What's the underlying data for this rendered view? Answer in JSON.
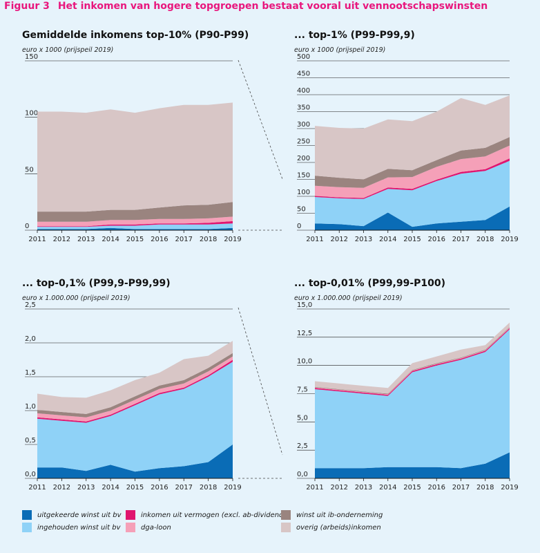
{
  "figure": {
    "label": "Figuur 3",
    "title": "Het inkomen van hogere topgroepen bestaat vooral uit vennootschapswinsten"
  },
  "legend": [
    {
      "key": "uitgekeerd",
      "label": "uitgekeerde winst uit bv",
      "color": "#0a6cb6"
    },
    {
      "key": "ingehouden",
      "label": "ingehouden winst uit bv",
      "color": "#8fd2f7"
    },
    {
      "key": "vermogen",
      "label": "inkomen uit vermogen (excl. ab-dividend)",
      "color": "#e0156f"
    },
    {
      "key": "dga",
      "label": "dga-loon",
      "color": "#f5a0b8"
    },
    {
      "key": "ib",
      "label": "winst uit ib-onderneming",
      "color": "#9a847f"
    },
    {
      "key": "overig",
      "label": "overig (arbeids)inkomen",
      "color": "#d8c6c6"
    }
  ],
  "chart_data": [
    {
      "type": "area",
      "stacked": true,
      "title": "Gemiddelde inkomens top-10% (P90-P99)",
      "ylabel": "euro x 1000 (prijspeil 2019)",
      "x": [
        "2011",
        "2012",
        "2013",
        "2014",
        "2015",
        "2016",
        "2017",
        "2018",
        "2019"
      ],
      "ylim": [
        0,
        150
      ],
      "yticks": [
        "0",
        "50",
        "100",
        "150"
      ],
      "series": [
        {
          "name": "uitgekeerde winst uit bv",
          "values": [
            1,
            1,
            1,
            2,
            1,
            1,
            1,
            1,
            2
          ]
        },
        {
          "name": "ingehouden winst uit bv",
          "values": [
            2,
            2,
            2,
            2,
            3,
            4,
            4,
            4,
            4
          ]
        },
        {
          "name": "inkomen uit vermogen (excl. ab-dividend)",
          "values": [
            0.5,
            0.5,
            0.5,
            1,
            1,
            1,
            1,
            1.5,
            2
          ]
        },
        {
          "name": "dga-loon",
          "values": [
            4,
            4,
            4,
            4,
            4,
            4,
            4,
            4,
            4
          ]
        },
        {
          "name": "winst uit ib-onderneming",
          "values": [
            9,
            9,
            9,
            9,
            9,
            10,
            12,
            12,
            13
          ]
        },
        {
          "name": "overig (arbeids)inkomen",
          "values": [
            88.5,
            88.5,
            87.5,
            89,
            86,
            88,
            89,
            88.5,
            88
          ]
        }
      ]
    },
    {
      "type": "area",
      "stacked": true,
      "title": "... top-1% (P99-P99,9)",
      "ylabel": "euro x 1000 (prijspeil 2019)",
      "x": [
        "2011",
        "2012",
        "2013",
        "2014",
        "2015",
        "2016",
        "2017",
        "2018",
        "2019"
      ],
      "ylim": [
        0,
        500
      ],
      "yticks": [
        "0",
        "50",
        "100",
        "150",
        "200",
        "250",
        "300",
        "350",
        "400",
        "450",
        "500"
      ],
      "series": [
        {
          "name": "uitgekeerde winst uit bv",
          "values": [
            20,
            18,
            12,
            52,
            10,
            20,
            25,
            30,
            70
          ]
        },
        {
          "name": "ingehouden winst uit bv",
          "values": [
            78,
            76,
            80,
            70,
            108,
            125,
            142,
            145,
            135
          ]
        },
        {
          "name": "inkomen uit vermogen (excl. ab-dividend)",
          "values": [
            3,
            3,
            3,
            4,
            4,
            4,
            5,
            5,
            7
          ]
        },
        {
          "name": "dga-loon",
          "values": [
            30,
            30,
            30,
            30,
            35,
            38,
            38,
            38,
            38
          ]
        },
        {
          "name": "winst uit ib-onderneming",
          "values": [
            30,
            28,
            25,
            25,
            20,
            20,
            25,
            25,
            25
          ]
        },
        {
          "name": "overig (arbeids)inkomen",
          "values": [
            147,
            147,
            150,
            146,
            145,
            143,
            155,
            127,
            123
          ]
        }
      ]
    },
    {
      "type": "area",
      "stacked": true,
      "title": "... top-0,1% (P99,9-P99,99)",
      "ylabel": "euro x 1.000.000 (prijspeil 2019)",
      "x": [
        "2011",
        "2012",
        "2013",
        "2014",
        "2015",
        "2016",
        "2017",
        "2018",
        "2019"
      ],
      "ylim": [
        0,
        2.5
      ],
      "yticks": [
        "0,0",
        "0,5",
        "1,0",
        "1,5",
        "2,0",
        "2,5"
      ],
      "series": [
        {
          "name": "uitgekeerde winst uit bv",
          "values": [
            0.16,
            0.16,
            0.11,
            0.2,
            0.1,
            0.15,
            0.18,
            0.24,
            0.5
          ]
        },
        {
          "name": "ingehouden winst uit bv",
          "values": [
            0.72,
            0.69,
            0.71,
            0.72,
            0.98,
            1.09,
            1.14,
            1.26,
            1.22
          ]
        },
        {
          "name": "inkomen uit vermogen (excl. ab-dividend)",
          "values": [
            0.02,
            0.02,
            0.02,
            0.02,
            0.02,
            0.02,
            0.02,
            0.02,
            0.03
          ]
        },
        {
          "name": "dga-loon",
          "values": [
            0.06,
            0.06,
            0.06,
            0.06,
            0.06,
            0.06,
            0.06,
            0.06,
            0.05
          ]
        },
        {
          "name": "winst uit ib-onderneming",
          "values": [
            0.05,
            0.05,
            0.05,
            0.05,
            0.05,
            0.05,
            0.05,
            0.05,
            0.05
          ]
        },
        {
          "name": "overig (arbeids)inkomen",
          "values": [
            0.24,
            0.22,
            0.24,
            0.25,
            0.24,
            0.19,
            0.31,
            0.18,
            0.18
          ]
        }
      ]
    },
    {
      "type": "area",
      "stacked": true,
      "title": "... top-0,01% (P99,99-P100)",
      "ylabel": "euro x 1.000.000 (prijspeil 2019)",
      "x": [
        "2011",
        "2012",
        "2013",
        "2014",
        "2015",
        "2016",
        "2017",
        "2018",
        "2019"
      ],
      "ylim": [
        0,
        15
      ],
      "yticks": [
        "0,0",
        "2,5",
        "5,0",
        "7,5",
        "10,0",
        "12,5",
        "15,0"
      ],
      "series": [
        {
          "name": "uitgekeerde winst uit bv",
          "values": [
            0.9,
            0.9,
            0.9,
            1.0,
            1.0,
            1.0,
            0.9,
            1.3,
            2.3
          ]
        },
        {
          "name": "ingehouden winst uit bv",
          "values": [
            7.0,
            6.8,
            6.6,
            6.3,
            8.4,
            9.0,
            9.6,
            9.9,
            10.9
          ]
        },
        {
          "name": "inkomen uit vermogen (excl. ab-dividend)",
          "values": [
            0.1,
            0.1,
            0.1,
            0.1,
            0.1,
            0.1,
            0.1,
            0.1,
            0.1
          ]
        },
        {
          "name": "dga-loon",
          "values": [
            0.05,
            0.05,
            0.05,
            0.05,
            0.05,
            0.05,
            0.05,
            0.05,
            0.05
          ]
        },
        {
          "name": "winst uit ib-onderneming",
          "values": [
            0.05,
            0.05,
            0.05,
            0.05,
            0.05,
            0.05,
            0.05,
            0.05,
            0.05
          ]
        },
        {
          "name": "overig (arbeids)inkomen",
          "values": [
            0.5,
            0.5,
            0.5,
            0.5,
            0.6,
            0.6,
            0.7,
            0.4,
            0.4
          ]
        }
      ]
    }
  ]
}
